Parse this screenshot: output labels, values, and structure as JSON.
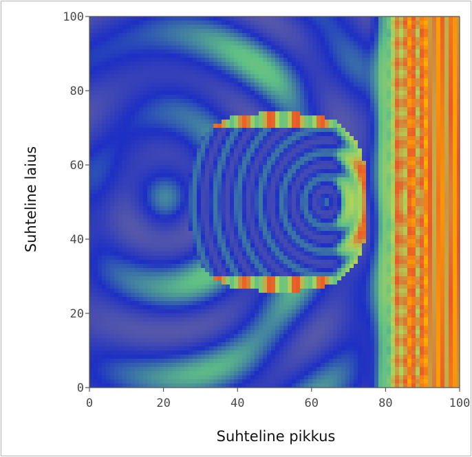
{
  "chart_data": {
    "type": "heatmap",
    "title": "",
    "xlabel": "Suhteline pikkus",
    "ylabel": "Suhteline laius",
    "xlim": [
      0,
      100
    ],
    "ylim": [
      0,
      100
    ],
    "x_ticks": [
      "0",
      "20",
      "40",
      "60",
      "80",
      "100"
    ],
    "y_ticks": [
      "0",
      "20",
      "40",
      "60",
      "80",
      "100"
    ],
    "grid": false,
    "colorscale": [
      "#5e5ea6",
      "#1d2fc4",
      "#5fbf86",
      "#b0d45a",
      "#e85a28",
      "#ffb000"
    ],
    "features": [
      {
        "name": "obstacle",
        "x_range": [
          27,
          75
        ],
        "y_range": [
          26,
          74
        ]
      },
      {
        "name": "focus",
        "x": 64,
        "y": 50
      },
      {
        "name": "source",
        "x": 95,
        "y": 50
      }
    ]
  }
}
